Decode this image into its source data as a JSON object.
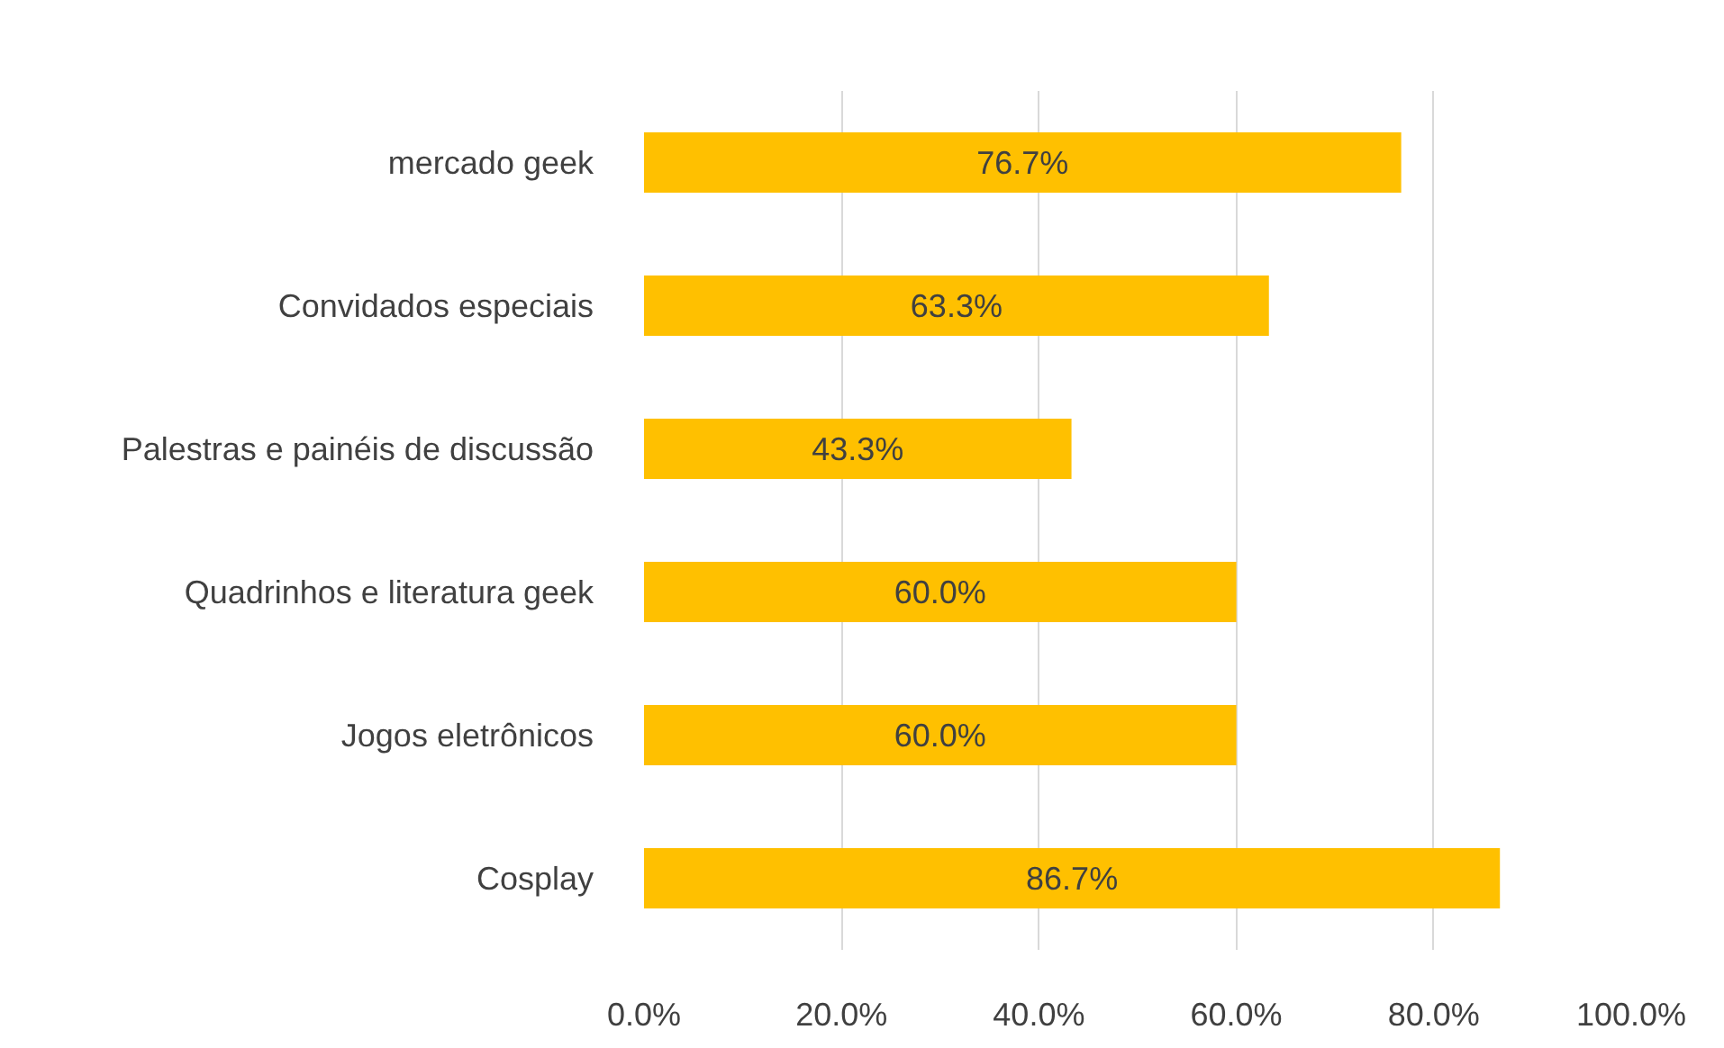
{
  "chart_data": {
    "type": "bar",
    "orientation": "horizontal",
    "categories": [
      "mercado geek",
      "Convidados especiais",
      "Palestras e painéis de discussão",
      "Quadrinhos e literatura geek",
      "Jogos eletrônicos",
      "Cosplay"
    ],
    "values": [
      76.7,
      63.3,
      43.3,
      60.0,
      60.0,
      86.7
    ],
    "value_labels": [
      "76.7%",
      "63.3%",
      "43.3%",
      "60.0%",
      "60.0%",
      "86.7%"
    ],
    "color": "#ffc000",
    "xlim": [
      0,
      100
    ],
    "xticks": [
      {
        "value": 0,
        "label": "0.0%"
      },
      {
        "value": 20,
        "label": "20.0%"
      },
      {
        "value": 40,
        "label": "40.0%"
      },
      {
        "value": 60,
        "label": "60.0%"
      },
      {
        "value": 80,
        "label": "80.0%"
      },
      {
        "value": 100,
        "label": "100.0%"
      }
    ],
    "grid": "x"
  }
}
